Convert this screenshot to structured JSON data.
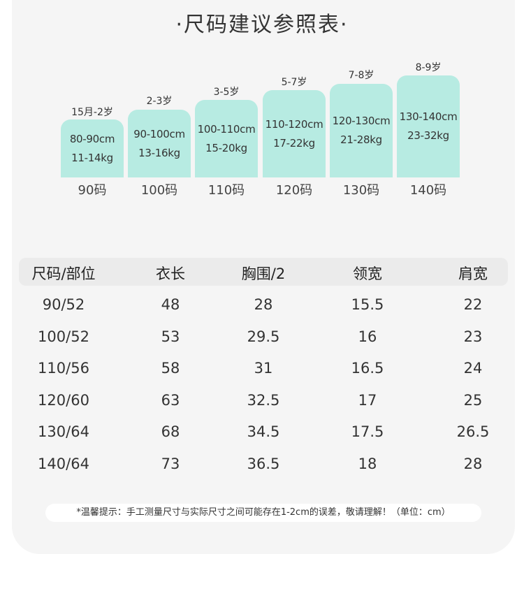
{
  "title": "·尺码建议参照表·",
  "sizes": [
    {
      "age": "15月-2岁",
      "height": "80-90cm",
      "weight": "11-14kg",
      "size": "90码"
    },
    {
      "age": "2-3岁",
      "height": "90-100cm",
      "weight": "13-16kg",
      "size": "100码"
    },
    {
      "age": "3-5岁",
      "height": "100-110cm",
      "weight": "15-20kg",
      "size": "110码"
    },
    {
      "age": "5-7岁",
      "height": "110-120cm",
      "weight": "17-22kg",
      "size": "120码"
    },
    {
      "age": "7-8岁",
      "height": "120-130cm",
      "weight": "21-28kg",
      "size": "130码"
    },
    {
      "age": "8-9岁",
      "height": "130-140cm",
      "weight": "23-32kg",
      "size": "140码"
    }
  ],
  "table": {
    "headers": [
      "尺码/部位",
      "衣长",
      "胸围/2",
      "领宽",
      "肩宽"
    ],
    "rows": [
      [
        "90/52",
        "48",
        "28",
        "15.5",
        "22"
      ],
      [
        "100/52",
        "53",
        "29.5",
        "16",
        "23"
      ],
      [
        "110/56",
        "58",
        "31",
        "16.5",
        "24"
      ],
      [
        "120/60",
        "63",
        "32.5",
        "17",
        "25"
      ],
      [
        "130/64",
        "68",
        "34.5",
        "17.5",
        "26.5"
      ],
      [
        "140/64",
        "73",
        "36.5",
        "18",
        "28"
      ]
    ]
  },
  "notice": "*温馨提示：手工测量尺寸与实际尺寸之间可能存在1-2cm的误差，敬请理解！（单位：cm）",
  "colors": {
    "box": "#b7ebe2",
    "card": "#f5f5f5",
    "header": "#ebebeb"
  }
}
